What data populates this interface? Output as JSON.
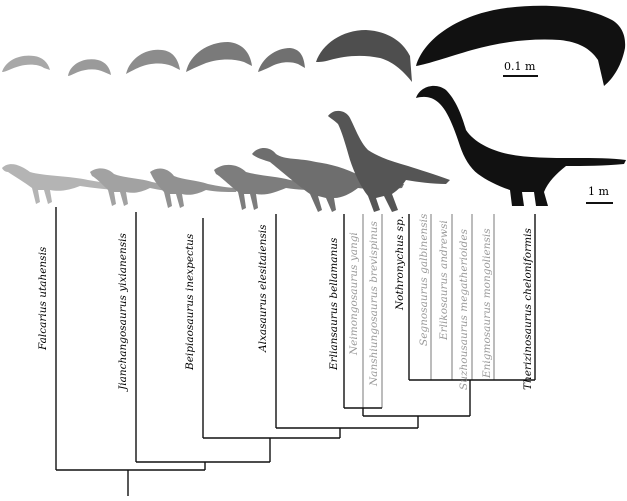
{
  "scale_bars": {
    "claw": "0.1 m",
    "body": "1 m"
  },
  "colors": {
    "black": "#111111",
    "dark": "#4a4a4a",
    "mid": "#6b6b6b",
    "light": "#a5a5a5",
    "grey_text": "#9a9a9a"
  },
  "taxa": [
    {
      "name": "Falcarius utahensis",
      "shade": "black"
    },
    {
      "name": "Jianchangosaurus yixianensis",
      "shade": "black"
    },
    {
      "name": "Beipiaosaurus inexpectus",
      "shade": "black"
    },
    {
      "name": "Alxasaurus elesitaiensis",
      "shade": "black"
    },
    {
      "name": "Erliansaurus bellamanus",
      "shade": "black"
    },
    {
      "name": "Neimongosaurus yangi",
      "shade": "grey"
    },
    {
      "name": "Nanshiungosaurus brevispinus",
      "shade": "grey"
    },
    {
      "name": "Nothronychus sp.",
      "shade": "black"
    },
    {
      "name": "Segnosaurus galbinensis",
      "shade": "grey"
    },
    {
      "name": "Erlikosaurus andrewsi",
      "shade": "grey"
    },
    {
      "name": "Suzhousaurus megatherioides",
      "shade": "grey"
    },
    {
      "name": "Enigmosaurus mongoliensis",
      "shade": "grey"
    },
    {
      "name": "Therizinosaurus cheloniformis",
      "shade": "black"
    }
  ]
}
